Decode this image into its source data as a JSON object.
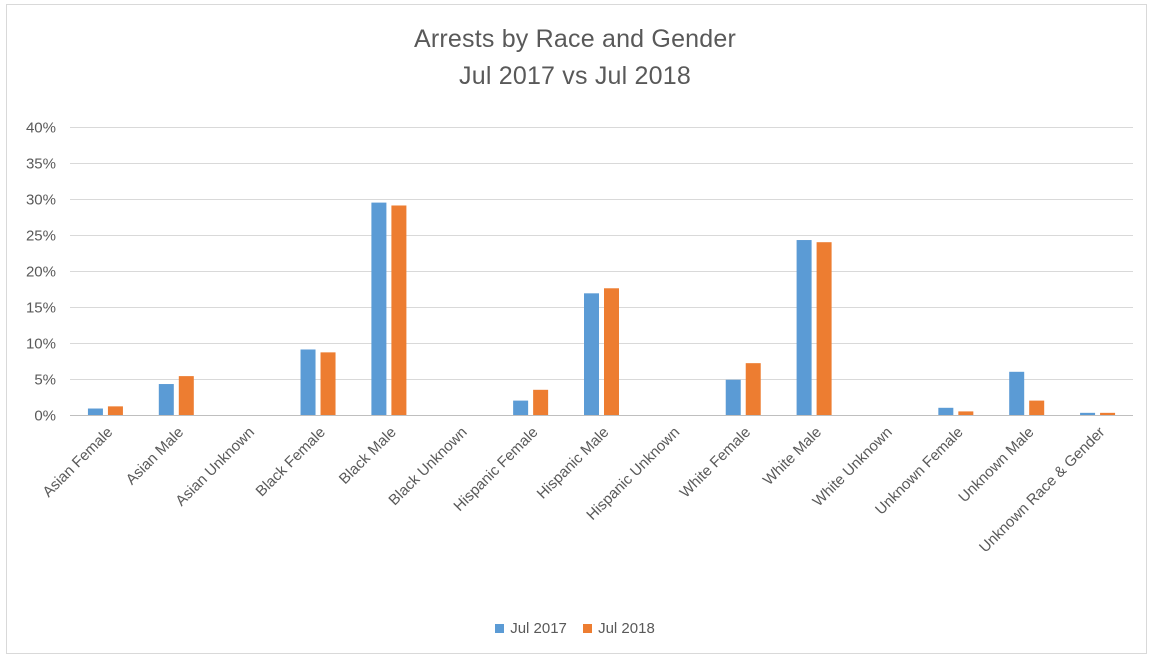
{
  "chart_data": {
    "type": "bar",
    "title": "Arrests by Race and Gender",
    "subtitle": "Jul 2017 vs Jul 2018",
    "xlabel": "",
    "ylabel": "",
    "ylim": [
      0,
      40
    ],
    "yticks": [
      "0%",
      "5%",
      "10%",
      "15%",
      "20%",
      "25%",
      "30%",
      "35%",
      "40%"
    ],
    "grid": true,
    "legend_position": "bottom",
    "categories": [
      "Asian Female",
      "Asian Male",
      "Asian Unknown",
      "Black Female",
      "Black Male",
      "Black Unknown",
      "Hispanic Female",
      "Hispanic Male",
      "Hispanic Unknown",
      "White Female",
      "White Male",
      "White Unknown",
      "Unknown Female",
      "Unknown Male",
      "Unknown Race & Gender"
    ],
    "series": [
      {
        "name": "Jul 2017",
        "color": "#5B9BD5",
        "values": [
          0.9,
          4.3,
          0,
          9.1,
          29.5,
          0,
          2.0,
          16.9,
          0,
          4.9,
          24.3,
          0,
          1.0,
          6.0,
          0.3
        ]
      },
      {
        "name": "Jul 2018",
        "color": "#ED7D31",
        "values": [
          1.2,
          5.4,
          0,
          8.7,
          29.1,
          0,
          3.5,
          17.6,
          0,
          7.2,
          24.0,
          0,
          0.5,
          2.0,
          0.3
        ]
      }
    ]
  }
}
